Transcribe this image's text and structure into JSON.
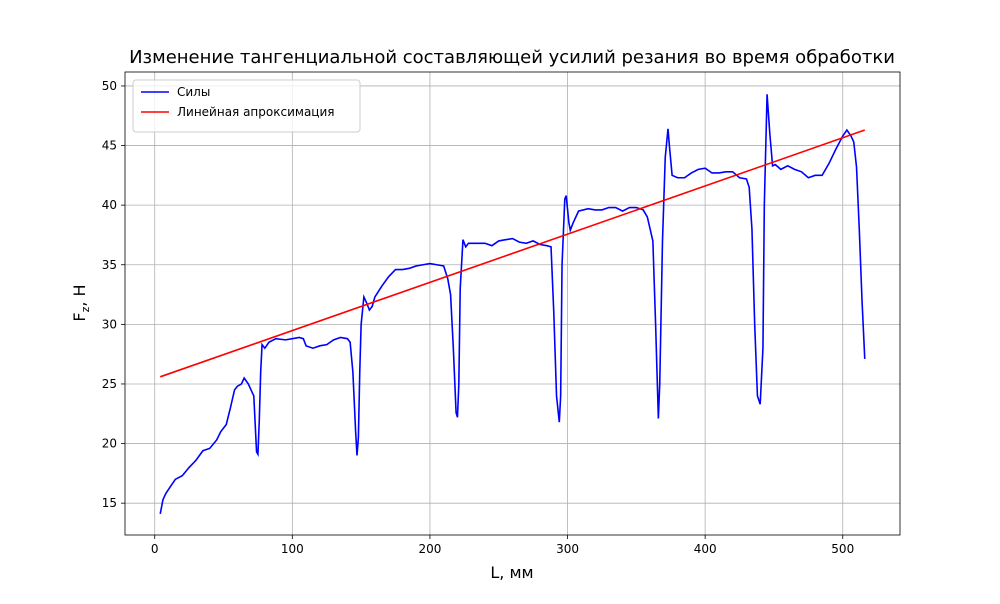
{
  "chart_data": {
    "type": "line",
    "title": "Изменение тангенциальной составляющей усилий резания во время обработки",
    "xlabel": "L, мм",
    "ylabel": [
      "F",
      "z",
      ", H"
    ],
    "xlim": [
      -21.6,
      541.6
    ],
    "ylim": [
      12.33,
      51.17
    ],
    "xticks": [
      0,
      100,
      200,
      300,
      400,
      500
    ],
    "yticks": [
      15,
      20,
      25,
      30,
      35,
      40,
      45,
      50
    ],
    "grid": true,
    "legend": "upper left",
    "series": [
      {
        "name": "Силы",
        "color": "#0000ff",
        "x": [
          4,
          6,
          8,
          12,
          15,
          20,
          25,
          30,
          35,
          40,
          45,
          48,
          52,
          55,
          58,
          60,
          63,
          65,
          68,
          70,
          72,
          74,
          75,
          76,
          77,
          78,
          80,
          83,
          88,
          95,
          100,
          105,
          108,
          110,
          115,
          120,
          125,
          130,
          135,
          140,
          142,
          144,
          146,
          147,
          148,
          149,
          150,
          152,
          154,
          156,
          158,
          160,
          165,
          170,
          175,
          180,
          185,
          190,
          195,
          200,
          205,
          210,
          213,
          215,
          217,
          219,
          220,
          221,
          222,
          224,
          226,
          228,
          235,
          240,
          245,
          250,
          255,
          260,
          265,
          270,
          275,
          280,
          285,
          288,
          290,
          292,
          294,
          295,
          296,
          298,
          299,
          301,
          302,
          304,
          308,
          315,
          320,
          325,
          330,
          335,
          340,
          345,
          350,
          355,
          358,
          362,
          364,
          366,
          367,
          369,
          371,
          373,
          374,
          376,
          380,
          385,
          390,
          395,
          400,
          405,
          410,
          415,
          420,
          425,
          430,
          432,
          434,
          436,
          438,
          440,
          442,
          443,
          445,
          447,
          449,
          451,
          455,
          460,
          465,
          470,
          475,
          480,
          485,
          490,
          495,
          500,
          503,
          506,
          508,
          510,
          512,
          514,
          516
        ],
        "values": [
          14.1,
          15.3,
          15.8,
          16.5,
          17.0,
          17.3,
          18.0,
          18.6,
          19.4,
          19.6,
          20.3,
          21.0,
          21.6,
          23.0,
          24.5,
          24.8,
          25.0,
          25.5,
          25.0,
          24.5,
          24.0,
          19.3,
          19.1,
          22.0,
          26.0,
          28.3,
          28.0,
          28.5,
          28.8,
          28.7,
          28.8,
          28.9,
          28.8,
          28.2,
          28.0,
          28.2,
          28.3,
          28.7,
          28.9,
          28.8,
          28.5,
          26.0,
          21.0,
          19.0,
          20.5,
          26.0,
          30.0,
          32.3,
          31.8,
          31.2,
          31.5,
          32.3,
          33.2,
          34.0,
          34.6,
          34.6,
          34.7,
          34.9,
          35.0,
          35.1,
          35.0,
          34.9,
          33.8,
          32.5,
          28.0,
          22.6,
          22.2,
          25.0,
          33.0,
          37.1,
          36.5,
          36.8,
          36.8,
          36.8,
          36.6,
          37.0,
          37.1,
          37.2,
          36.9,
          36.8,
          37.0,
          36.7,
          36.6,
          36.5,
          31.0,
          24.0,
          21.8,
          24.0,
          35.0,
          40.5,
          40.8,
          38.5,
          37.9,
          38.5,
          39.5,
          39.7,
          39.6,
          39.6,
          39.8,
          39.8,
          39.5,
          39.8,
          39.8,
          39.6,
          39.0,
          37.0,
          30.0,
          22.1,
          25.0,
          37.0,
          44.0,
          46.4,
          45.0,
          42.5,
          42.3,
          42.3,
          42.7,
          43.0,
          43.1,
          42.7,
          42.7,
          42.8,
          42.8,
          42.3,
          42.2,
          41.5,
          38.0,
          30.0,
          24.0,
          23.3,
          28.0,
          40.0,
          49.3,
          46.0,
          43.3,
          43.4,
          43.0,
          43.3,
          43.0,
          42.8,
          42.3,
          42.5,
          42.5,
          43.5,
          44.7,
          45.8,
          46.3,
          45.8,
          45.3,
          43.2,
          38.0,
          32.0,
          27.1
        ]
      },
      {
        "name": "Линейная апроксимация",
        "color": "#ff0000",
        "x": [
          4,
          516
        ],
        "values": [
          25.6,
          46.3
        ]
      }
    ]
  }
}
